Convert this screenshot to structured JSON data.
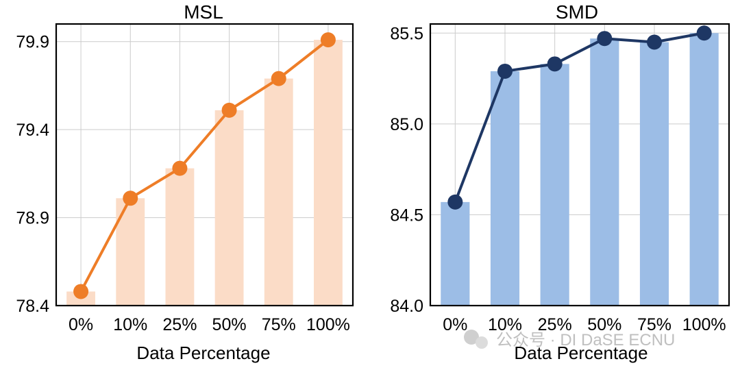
{
  "chart_data": [
    {
      "type": "bar+line",
      "title": "MSL",
      "xlabel": "Data Percentage",
      "ylabel": "",
      "categories": [
        "0%",
        "10%",
        "25%",
        "50%",
        "75%",
        "100%"
      ],
      "values": [
        78.48,
        79.01,
        79.18,
        79.51,
        79.69,
        79.91
      ],
      "ylim": [
        78.4,
        80.0
      ],
      "yticks": [
        "78.4",
        "78.9",
        "79.4",
        "79.9"
      ],
      "ytick_values": [
        78.4,
        78.9,
        79.4,
        79.9
      ],
      "bar_color": "#fbdcc7",
      "line_color": "#ee7d27",
      "grid": true
    },
    {
      "type": "bar+line",
      "title": "SMD",
      "xlabel": "Data Percentage",
      "ylabel": "",
      "categories": [
        "0%",
        "10%",
        "25%",
        "50%",
        "75%",
        "100%"
      ],
      "values": [
        84.57,
        85.29,
        85.33,
        85.47,
        85.45,
        85.5
      ],
      "ylim": [
        84.0,
        85.55
      ],
      "yticks": [
        "84.0",
        "84.5",
        "85.0",
        "85.5"
      ],
      "ytick_values": [
        84.0,
        84.5,
        85.0,
        85.5
      ],
      "bar_color": "#9cbde6",
      "line_color": "#1e3764",
      "grid": true
    }
  ],
  "watermark": "公众号 · DI DaSE ECNU"
}
